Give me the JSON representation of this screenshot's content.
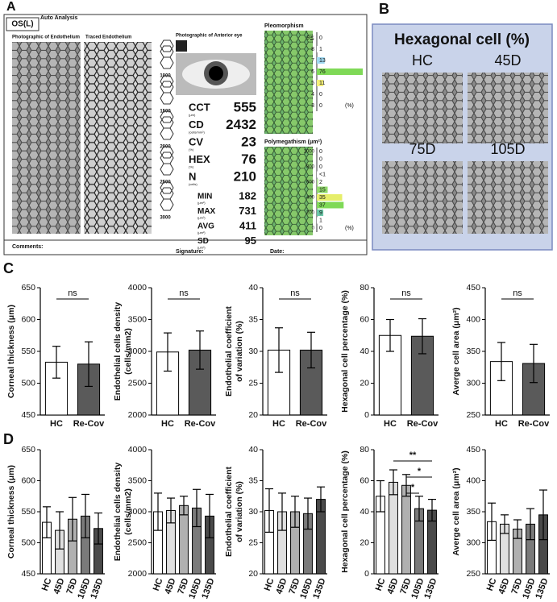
{
  "panel_labels": [
    "A",
    "B",
    "C",
    "D"
  ],
  "panel_a": {
    "eye": "OS(L)",
    "heading": "Auto Analysis",
    "captions": [
      "Photographic of Endothelium",
      "Traced Endothelium",
      "Photographic of Anterior eye"
    ],
    "hex_scale": [
      1000,
      1500,
      2000,
      2500,
      3000
    ],
    "metrics": [
      {
        "name": "CCT",
        "unit": "(μm)",
        "value": 555
      },
      {
        "name": "CD",
        "unit": "(cells/mm²)",
        "value": 2432
      },
      {
        "name": "CV",
        "unit": "(%)",
        "value": 23
      },
      {
        "name": "HEX",
        "unit": "(%)",
        "value": 76
      },
      {
        "name": "N",
        "unit": "(cells)",
        "value": 210
      },
      {
        "name": "MIN",
        "unit": "(μm²)",
        "value": 182
      },
      {
        "name": "MAX",
        "unit": "(μm²)",
        "value": 731
      },
      {
        "name": "AVG",
        "unit": "(μm²)",
        "value": 411
      },
      {
        "name": "SD",
        "unit": "(μm²)",
        "value": 95
      }
    ],
    "pleomorphism": {
      "title": "Pleomorphism",
      "labels": [
        "9≦",
        "8",
        "7",
        "6",
        "5",
        "4",
        "3"
      ],
      "values": [
        0,
        1,
        13,
        76,
        11,
        0,
        0
      ],
      "colors": [
        "#fff",
        "#fff",
        "#9fd8f0",
        "#7fd957",
        "#f5f07a",
        "#fff",
        "#fff"
      ],
      "unit": "(%)"
    },
    "polymegathism": {
      "title": "Polymegathism (μm²)",
      "yticks": [
        1000,
        800,
        600,
        400,
        200,
        0
      ],
      "values": [
        0,
        0,
        0,
        0.5,
        2,
        15,
        35,
        37,
        9,
        1,
        0
      ],
      "value_labels": [
        "0",
        "0",
        "0",
        "<1",
        "2",
        "15",
        "35",
        "37",
        "9",
        "1",
        "0"
      ],
      "colors": [
        "#fff",
        "#fff",
        "#fff",
        "#fff",
        "#b6e89a",
        "#8fd96a",
        "#e6ee6a",
        "#7fd957",
        "#6cc7a8",
        "#fff",
        "#fff"
      ],
      "unit": "(%)"
    },
    "footer": [
      "Comments:",
      "Signature:",
      "Date:"
    ]
  },
  "panel_b": {
    "title": "Hexagonal cell (%)",
    "groups": [
      "HC",
      "45D",
      "75D",
      "105D"
    ]
  },
  "chart_data": [
    {
      "type": "bar",
      "ylabel": [
        "Corneal thickness (μm)"
      ],
      "categories": [
        "HC",
        "Re-Cov"
      ],
      "values": [
        533,
        530
      ],
      "errors": [
        25,
        35
      ],
      "colors": [
        "#ffffff",
        "#5a5a5a"
      ],
      "ylim": [
        450,
        650
      ],
      "yticks": [
        450,
        500,
        550,
        600,
        650
      ],
      "annotations": [
        {
          "text": "ns",
          "between": [
            "HC",
            "Re-Cov"
          ]
        }
      ]
    },
    {
      "type": "bar",
      "ylabel": [
        "Endothelial cells density",
        "(cells/mm2)"
      ],
      "categories": [
        "HC",
        "Re-Cov"
      ],
      "values": [
        2990,
        3020
      ],
      "errors": [
        300,
        300
      ],
      "colors": [
        "#ffffff",
        "#5a5a5a"
      ],
      "ylim": [
        2000,
        4000
      ],
      "yticks": [
        2000,
        2500,
        3000,
        3500,
        4000
      ],
      "annotations": [
        {
          "text": "ns",
          "between": [
            "HC",
            "Re-Cov"
          ]
        }
      ]
    },
    {
      "type": "bar",
      "ylabel": [
        "Endothelial coefficient",
        "of variation (%)"
      ],
      "categories": [
        "HC",
        "Re-Cov"
      ],
      "values": [
        30.2,
        30.2
      ],
      "errors": [
        3.5,
        2.8
      ],
      "colors": [
        "#ffffff",
        "#5a5a5a"
      ],
      "ylim": [
        20,
        40
      ],
      "yticks": [
        20,
        25,
        30,
        35,
        40
      ],
      "annotations": [
        {
          "text": "ns",
          "between": [
            "HC",
            "Re-Cov"
          ]
        }
      ]
    },
    {
      "type": "bar",
      "ylabel": [
        "Hexagonal cell percentage (%)"
      ],
      "categories": [
        "HC",
        "Re-Cov"
      ],
      "values": [
        50,
        49.5
      ],
      "errors": [
        10,
        11
      ],
      "colors": [
        "#ffffff",
        "#5a5a5a"
      ],
      "ylim": [
        0,
        80
      ],
      "yticks": [
        0,
        20,
        40,
        60,
        80
      ],
      "annotations": [
        {
          "text": "ns",
          "between": [
            "HC",
            "Re-Cov"
          ]
        }
      ]
    },
    {
      "type": "bar",
      "ylabel": [
        "Averge cell area (μm²)"
      ],
      "categories": [
        "HC",
        "Re-Cov"
      ],
      "values": [
        334,
        331
      ],
      "errors": [
        30,
        30
      ],
      "colors": [
        "#ffffff",
        "#5a5a5a"
      ],
      "ylim": [
        250,
        450
      ],
      "yticks": [
        250,
        300,
        350,
        400,
        450
      ],
      "annotations": [
        {
          "text": "ns",
          "between": [
            "HC",
            "Re-Cov"
          ]
        }
      ]
    },
    {
      "type": "bar",
      "ylabel": [
        "Corneal thickness (μm)"
      ],
      "categories": [
        "HC",
        "45D",
        "75D",
        "105D",
        "135D"
      ],
      "values": [
        533,
        520,
        538,
        543,
        523
      ],
      "errors": [
        25,
        30,
        35,
        35,
        25
      ],
      "colors": [
        "#ffffff",
        "#e0e0e0",
        "#b0b0b0",
        "#7a7a7a",
        "#4a4a4a"
      ],
      "ylim": [
        450,
        650
      ],
      "yticks": [
        450,
        500,
        550,
        600,
        650
      ],
      "annotations": []
    },
    {
      "type": "bar",
      "ylabel": [
        "Endothelial cells density",
        "(cells/mm2)"
      ],
      "categories": [
        "HC",
        "45D",
        "75D",
        "105D",
        "135D"
      ],
      "values": [
        3000,
        3020,
        3100,
        3060,
        2930
      ],
      "errors": [
        300,
        200,
        150,
        300,
        350
      ],
      "colors": [
        "#ffffff",
        "#e0e0e0",
        "#b0b0b0",
        "#7a7a7a",
        "#4a4a4a"
      ],
      "ylim": [
        2000,
        4000
      ],
      "yticks": [
        2000,
        2500,
        3000,
        3500,
        4000
      ],
      "annotations": []
    },
    {
      "type": "bar",
      "ylabel": [
        "Endothelial coefficient",
        "of variation (%)"
      ],
      "categories": [
        "HC",
        "45D",
        "75D",
        "105D",
        "135D"
      ],
      "values": [
        30.2,
        30,
        30,
        29.7,
        32
      ],
      "errors": [
        3.5,
        3,
        2.5,
        2.5,
        2
      ],
      "colors": [
        "#ffffff",
        "#e0e0e0",
        "#b0b0b0",
        "#7a7a7a",
        "#4a4a4a"
      ],
      "ylim": [
        20,
        40
      ],
      "yticks": [
        20,
        25,
        30,
        35,
        40
      ],
      "annotations": []
    },
    {
      "type": "bar",
      "ylabel": [
        "Hexagonal cell percentage (%)"
      ],
      "categories": [
        "HC",
        "45D",
        "75D",
        "105D",
        "135D"
      ],
      "values": [
        50,
        59,
        57,
        42,
        41
      ],
      "errors": [
        10,
        8,
        7,
        8,
        7
      ],
      "colors": [
        "#ffffff",
        "#e0e0e0",
        "#b0b0b0",
        "#7a7a7a",
        "#4a4a4a"
      ],
      "ylim": [
        0,
        80
      ],
      "yticks": [
        0,
        20,
        40,
        60,
        80
      ],
      "annotations": [
        {
          "text": "**",
          "between": [
            "45D",
            "135D"
          ]
        },
        {
          "text": "*",
          "between": [
            "75D",
            "135D"
          ]
        },
        {
          "text": "*",
          "between": [
            "75D",
            "105D"
          ]
        }
      ]
    },
    {
      "type": "bar",
      "ylabel": [
        "Averge cell area (μm²)"
      ],
      "categories": [
        "HC",
        "45D",
        "75D",
        "105D",
        "135D"
      ],
      "values": [
        334,
        330,
        322,
        330,
        345
      ],
      "errors": [
        30,
        15,
        15,
        25,
        40
      ],
      "colors": [
        "#ffffff",
        "#e0e0e0",
        "#b0b0b0",
        "#7a7a7a",
        "#4a4a4a"
      ],
      "ylim": [
        250,
        450
      ],
      "yticks": [
        250,
        300,
        350,
        400,
        450
      ],
      "annotations": []
    }
  ]
}
